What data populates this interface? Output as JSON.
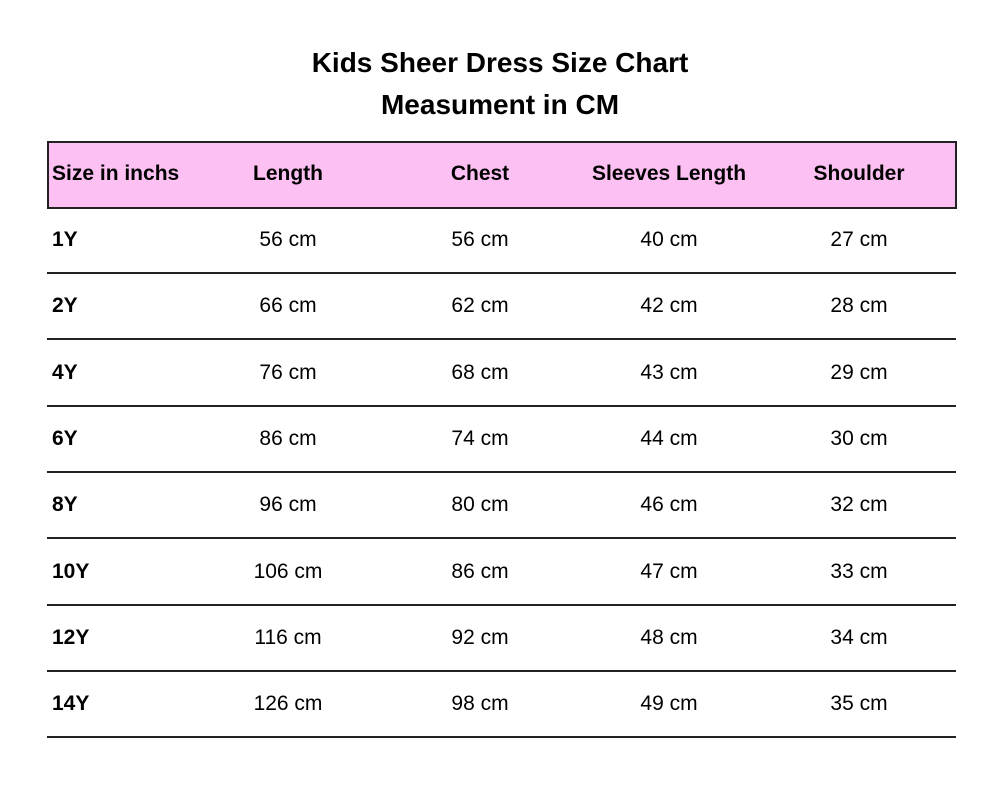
{
  "header": {
    "title": "Kids Sheer Dress Size Chart",
    "subtitle": "Measument in CM"
  },
  "table": {
    "columns": [
      "Size in inchs",
      "Length",
      "Chest",
      "Sleeves Length",
      "Shoulder"
    ],
    "rows": [
      [
        "1Y",
        "56 cm",
        "56 cm",
        "40 cm",
        "27 cm"
      ],
      [
        "2Y",
        "66 cm",
        "62 cm",
        "42 cm",
        "28 cm"
      ],
      [
        "4Y",
        "76 cm",
        "68 cm",
        "43 cm",
        "29 cm"
      ],
      [
        "6Y",
        "86 cm",
        "74 cm",
        "44 cm",
        "30 cm"
      ],
      [
        "8Y",
        "96 cm",
        "80 cm",
        "46 cm",
        "32 cm"
      ],
      [
        "10Y",
        "106 cm",
        "86 cm",
        "47 cm",
        "33 cm"
      ],
      [
        "12Y",
        "116 cm",
        "92 cm",
        "48 cm",
        "34 cm"
      ],
      [
        "14Y",
        "126 cm",
        "98 cm",
        "49 cm",
        "35 cm"
      ]
    ]
  }
}
